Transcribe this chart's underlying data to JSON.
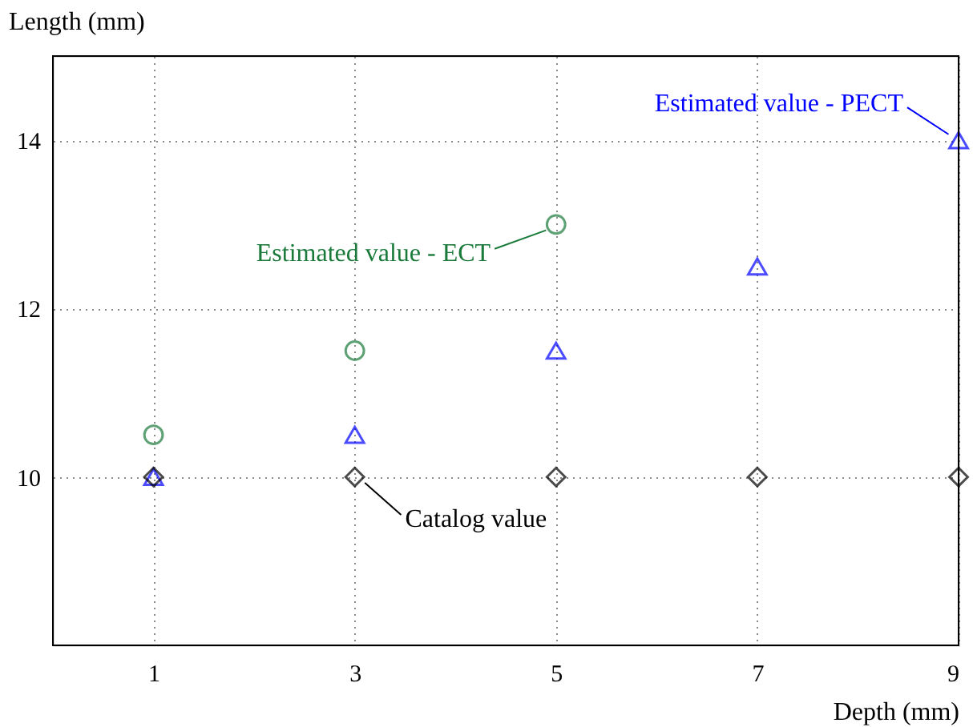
{
  "chart_data": {
    "type": "scatter",
    "xlabel": "Depth (mm)",
    "ylabel": "Length (mm)",
    "xlim": [
      0,
      9
    ],
    "ylim": [
      8,
      15
    ],
    "xticks": [
      1,
      3,
      5,
      7,
      9
    ],
    "yticks": [
      10,
      12,
      14
    ],
    "grid": true,
    "legend": false,
    "series": [
      {
        "color": "#1a7a3a",
        "marker": "circle",
        "x": [
          1,
          3,
          5
        ],
        "values": [
          10.5,
          11.5,
          13.0
        ]
      },
      {
        "color": "#0000ff",
        "marker": "triangle",
        "x": [
          1,
          3,
          5,
          7,
          9
        ],
        "values": [
          10.0,
          10.5,
          11.5,
          12.5,
          14.0
        ]
      },
      {
        "color": "#000000",
        "marker": "diamond",
        "x": [
          1,
          3,
          5,
          7,
          9
        ],
        "values": [
          10,
          10,
          10,
          10,
          10
        ]
      }
    ],
    "annotations": [
      {
        "text": "Estimated value - ECT",
        "x": 5,
        "y": 13.0
      },
      {
        "text": "Estimated value - PECT",
        "x": 9,
        "y": 14.0
      },
      {
        "text": "Catalog value",
        "x": 3,
        "y": 10
      }
    ]
  }
}
